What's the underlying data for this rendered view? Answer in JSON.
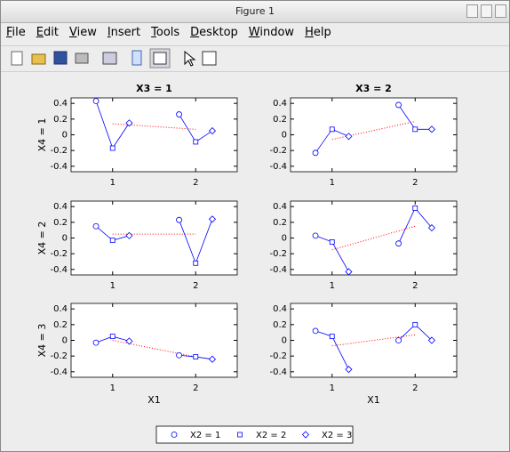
{
  "window": {
    "title": "Figure 1"
  },
  "menu": [
    "File",
    "Edit",
    "View",
    "Insert",
    "Tools",
    "Desktop",
    "Window",
    "Help"
  ],
  "legend": {
    "color": "#0000ff",
    "entries": [
      {
        "name": "X2 = 1",
        "marker": "circle"
      },
      {
        "name": "X2 = 2",
        "marker": "square"
      },
      {
        "name": "X2 = 3",
        "marker": "diamond"
      }
    ]
  },
  "chart_data": [
    {
      "type": "line",
      "title": "X3 = 1",
      "ylabel": "X4 = 1",
      "x": [
        0.8,
        1,
        1.2,
        null,
        1.8,
        2,
        2.2
      ],
      "values": [
        0.43,
        -0.17,
        0.15,
        null,
        0.26,
        -0.09,
        0.05
      ],
      "color": "#0000ff",
      "mean_x": [
        1,
        2
      ],
      "mean_values": [
        0.14,
        0.07
      ],
      "mean_color": "#ff0000",
      "xlim": [
        0.5,
        2.5
      ],
      "ylim": [
        -0.47,
        0.47
      ],
      "xticks": [
        1,
        2
      ],
      "yticks": [
        -0.4,
        -0.2,
        0,
        0.2,
        0.4
      ]
    },
    {
      "type": "line",
      "title": "X3 = 2",
      "x": [
        0.8,
        1,
        1.2,
        null,
        1.8,
        2,
        2.2
      ],
      "values": [
        -0.23,
        0.07,
        -0.02,
        null,
        0.38,
        0.07,
        0.07
      ],
      "color": "#0000ff",
      "mean_x": [
        1,
        2
      ],
      "mean_values": [
        -0.06,
        0.17
      ],
      "mean_color": "#ff0000",
      "xlim": [
        0.5,
        2.5
      ],
      "ylim": [
        -0.47,
        0.47
      ],
      "xticks": [
        1,
        2
      ],
      "yticks": [
        -0.4,
        -0.2,
        0,
        0.2,
        0.4
      ]
    },
    {
      "type": "line",
      "ylabel": "X4 = 2",
      "x": [
        0.8,
        1,
        1.2,
        null,
        1.8,
        2,
        2.2
      ],
      "values": [
        0.15,
        -0.03,
        0.03,
        null,
        0.23,
        -0.32,
        0.24
      ],
      "color": "#0000ff",
      "mean_x": [
        1,
        2
      ],
      "mean_values": [
        0.05,
        0.05
      ],
      "mean_color": "#ff0000",
      "xlim": [
        0.5,
        2.5
      ],
      "ylim": [
        -0.47,
        0.47
      ],
      "xticks": [
        1,
        2
      ],
      "yticks": [
        -0.4,
        -0.2,
        0,
        0.2,
        0.4
      ]
    },
    {
      "type": "line",
      "x": [
        0.8,
        1,
        1.2,
        null,
        1.8,
        2,
        2.2
      ],
      "values": [
        0.03,
        -0.05,
        -0.43,
        null,
        -0.07,
        0.38,
        0.13
      ],
      "color": "#0000ff",
      "mean_x": [
        1,
        2
      ],
      "mean_values": [
        -0.15,
        0.15
      ],
      "mean_color": "#ff0000",
      "xlim": [
        0.5,
        2.5
      ],
      "ylim": [
        -0.47,
        0.47
      ],
      "xticks": [
        1,
        2
      ],
      "yticks": [
        -0.4,
        -0.2,
        0,
        0.2,
        0.4
      ]
    },
    {
      "type": "line",
      "ylabel": "X4 = 3",
      "xlabel": "X1",
      "x": [
        0.8,
        1,
        1.2,
        null,
        1.8,
        2,
        2.2
      ],
      "values": [
        -0.03,
        0.05,
        -0.01,
        null,
        -0.19,
        -0.21,
        -0.24
      ],
      "color": "#0000ff",
      "mean_x": [
        1,
        2
      ],
      "mean_values": [
        0.0,
        -0.21
      ],
      "mean_color": "#ff0000",
      "xlim": [
        0.5,
        2.5
      ],
      "ylim": [
        -0.47,
        0.47
      ],
      "xticks": [
        1,
        2
      ],
      "yticks": [
        -0.4,
        -0.2,
        0,
        0.2,
        0.4
      ]
    },
    {
      "type": "line",
      "xlabel": "X1",
      "x": [
        0.8,
        1,
        1.2,
        null,
        1.8,
        2,
        2.2
      ],
      "values": [
        0.12,
        0.05,
        -0.37,
        null,
        0.0,
        0.2,
        0.0
      ],
      "color": "#0000ff",
      "mean_x": [
        1,
        2
      ],
      "mean_values": [
        -0.07,
        0.07
      ],
      "mean_color": "#ff0000",
      "xlim": [
        0.5,
        2.5
      ],
      "ylim": [
        -0.47,
        0.47
      ],
      "xticks": [
        1,
        2
      ],
      "yticks": [
        -0.4,
        -0.2,
        0,
        0.2,
        0.4
      ]
    }
  ]
}
